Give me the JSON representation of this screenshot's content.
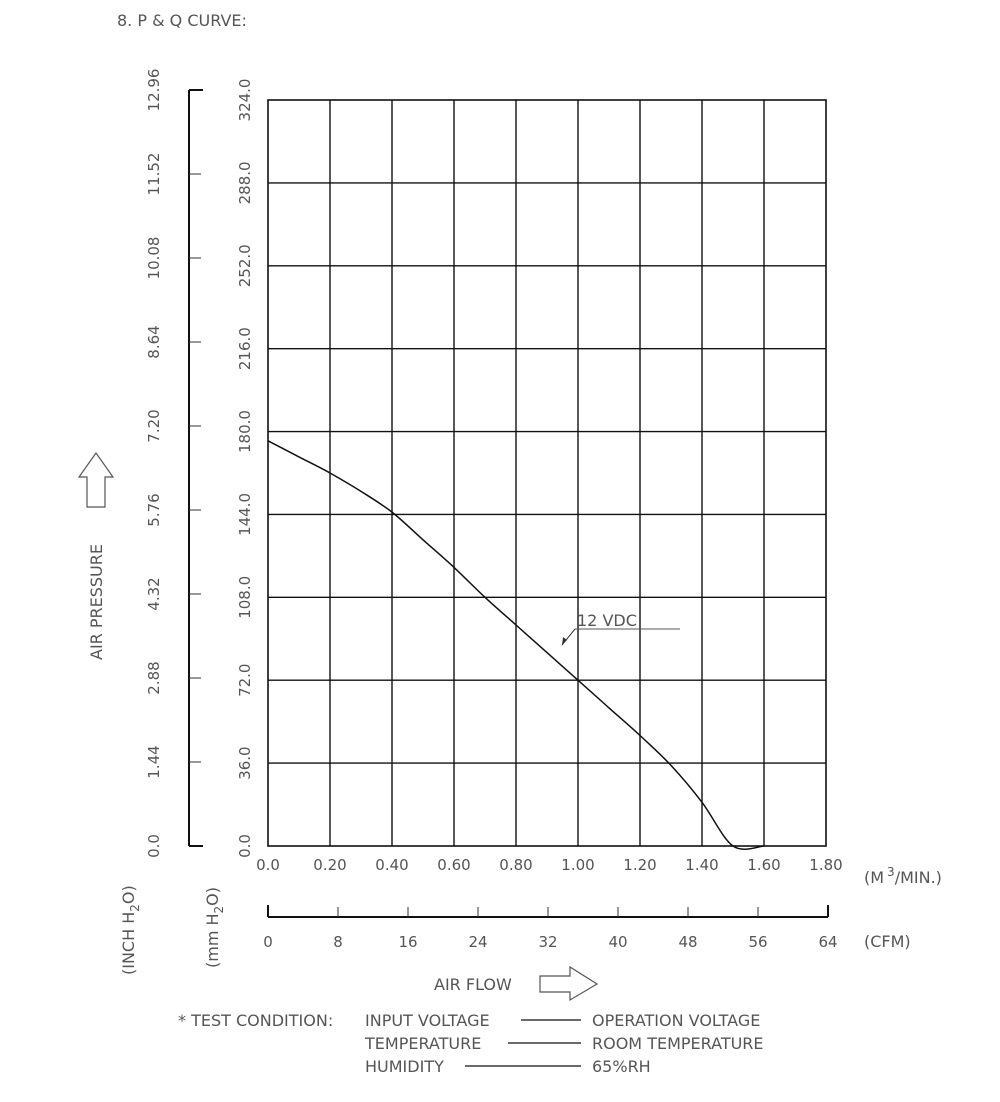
{
  "title": "8. P & Q CURVE:",
  "chart_data": {
    "type": "line",
    "x_range": [
      0,
      1.8
    ],
    "y_range": [
      0,
      324
    ],
    "grid": true,
    "x_ticks_m3min": [
      "0.0",
      "0.20",
      "0.40",
      "0.60",
      "0.80",
      "1.00",
      "1.20",
      "1.40",
      "1.60",
      "1.80"
    ],
    "x_unit_m3min_prefix": "(M",
    "x_unit_m3min_sup": "3",
    "x_unit_m3min_suffix": "/MIN.)",
    "x_ticks_cfm": [
      "0",
      "8",
      "16",
      "24",
      "32",
      "40",
      "48",
      "56",
      "64"
    ],
    "x_unit_cfm": "(CFM)",
    "xlabel": "AIR FLOW",
    "y_ticks_mmh2o": [
      "0.0",
      "36.0",
      "72.0",
      "108.0",
      "144.0",
      "180.0",
      "216.0",
      "252.0",
      "288.0",
      "324.0"
    ],
    "y_ticks_inchh2o": [
      "0.0",
      "1.44",
      "2.88",
      "4.32",
      "5.76",
      "7.20",
      "8.64",
      "10.08",
      "11.52",
      "12.96"
    ],
    "ylabel": "AIR PRESSURE",
    "y_unit_inch_prefix": "(INCH H",
    "y_unit_inch_sub": "2",
    "y_unit_inch_suffix": "O)",
    "y_unit_mm_prefix": "(mm H",
    "y_unit_mm_sub": "2",
    "y_unit_mm_suffix": "O)",
    "series": [
      {
        "name": "12 VDC",
        "x": [
          0.0,
          0.1,
          0.2,
          0.3,
          0.4,
          0.5,
          0.6,
          0.7,
          0.8,
          0.9,
          1.0,
          1.1,
          1.2,
          1.3,
          1.4,
          1.5,
          1.6
        ],
        "y": [
          176,
          169,
          162,
          154,
          145,
          133,
          121,
          108,
          96,
          84,
          72,
          60,
          48,
          35,
          19,
          0,
          0
        ]
      }
    ]
  },
  "test_condition": {
    "heading": "* TEST CONDITION:",
    "rows": [
      {
        "label": "INPUT VOLTAGE",
        "value": "OPERATION VOLTAGE"
      },
      {
        "label": "TEMPERATURE",
        "value": "ROOM TEMPERATURE"
      },
      {
        "label": "HUMIDITY",
        "value": "65%RH"
      }
    ]
  }
}
